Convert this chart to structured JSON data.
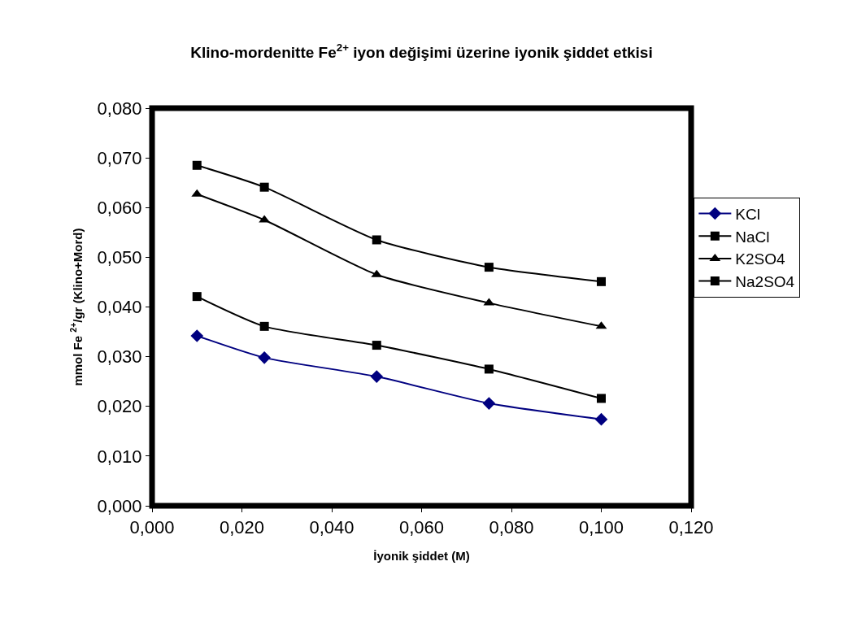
{
  "chart_data": {
    "type": "line",
    "title": "Klino-mordenitte Fe$^{2+}$ iyon değişimi üzerine iyonik şiddet etkisi",
    "xlabel": "İyonik şiddet (M)",
    "ylabel": "mmol Fe $^{2+}$/gr (Klino+Mord)",
    "x": [
      0.01,
      0.025,
      0.05,
      0.075,
      0.1
    ],
    "series": [
      {
        "name": "KCl",
        "color": "#000080",
        "marker": "diamond",
        "values": [
          0.0342,
          0.0298,
          0.026,
          0.0206,
          0.0174
        ]
      },
      {
        "name": "NaCl",
        "color": "#000000",
        "marker": "square",
        "values": [
          0.0421,
          0.0361,
          0.0323,
          0.0275,
          0.0216
        ]
      },
      {
        "name": "K2SO4",
        "color": "#000000",
        "marker": "triangle",
        "values": [
          0.0627,
          0.0575,
          0.0465,
          0.0408,
          0.0361
        ]
      },
      {
        "name": "Na2SO4",
        "color": "#000000",
        "marker": "square",
        "values": [
          0.0685,
          0.0641,
          0.0535,
          0.048,
          0.0451
        ]
      }
    ],
    "xlim": [
      0,
      0.12
    ],
    "xticks": [
      {
        "value": 0,
        "label": "0,000"
      },
      {
        "value": 0.02,
        "label": "0,020"
      },
      {
        "value": 0.04,
        "label": "0,040"
      },
      {
        "value": 0.06,
        "label": "0,060"
      },
      {
        "value": 0.08,
        "label": "0,080"
      },
      {
        "value": 0.1,
        "label": "0,100"
      },
      {
        "value": 0.12,
        "label": "0,120"
      }
    ],
    "ylim": [
      0,
      0.08
    ],
    "yticks": [
      {
        "value": 0,
        "label": "0,000"
      },
      {
        "value": 0.01,
        "label": "0,010"
      },
      {
        "value": 0.02,
        "label": "0,020"
      },
      {
        "value": 0.03,
        "label": "0,030"
      },
      {
        "value": 0.04,
        "label": "0,040"
      },
      {
        "value": 0.05,
        "label": "0,050"
      },
      {
        "value": 0.06,
        "label": "0,060"
      },
      {
        "value": 0.07,
        "label": "0,070"
      },
      {
        "value": 0.08,
        "label": "0,080"
      }
    ],
    "grid": false,
    "legend": "right",
    "line_style": "solid"
  }
}
